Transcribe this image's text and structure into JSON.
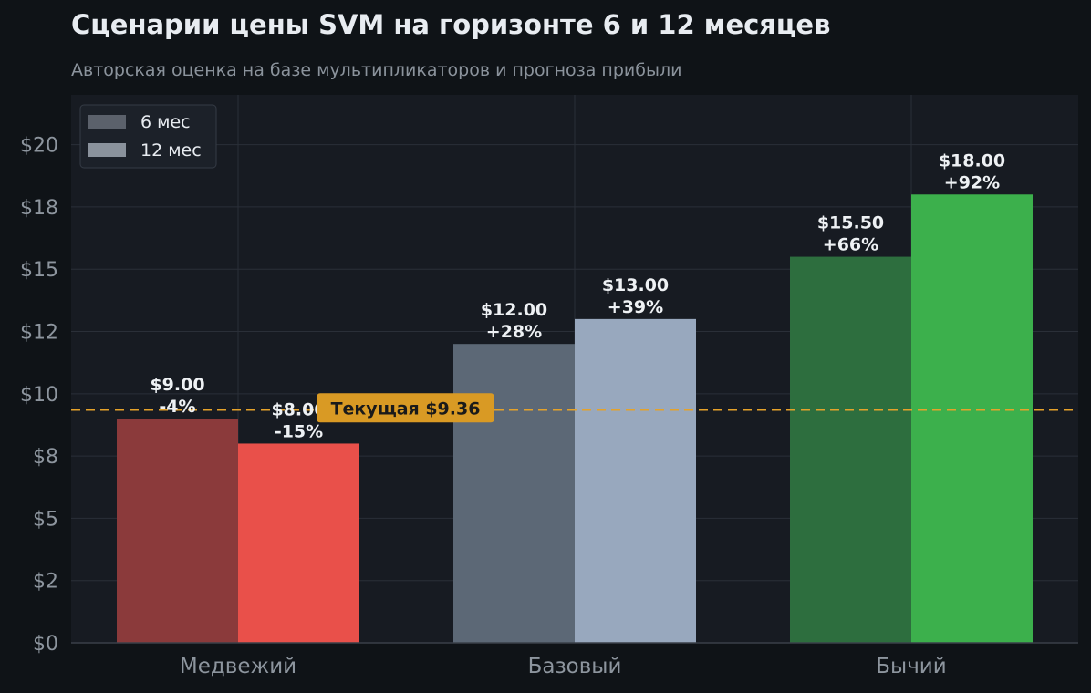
{
  "chart_data": {
    "type": "bar",
    "title": "Сценарии цены SVM на горизонте 6 и 12 месяцев",
    "subtitle": "Авторская оценка на базе мультипликаторов и прогноза прибыли",
    "xlabel": "",
    "ylabel": "",
    "categories": [
      "Медвежий",
      "Базовый",
      "Бычий"
    ],
    "series": [
      {
        "name": "6 мес",
        "values": [
          9.0,
          12.0,
          15.5
        ],
        "value_labels": [
          "$9.00",
          "$12.00",
          "$15.50"
        ],
        "change_labels": [
          "-4%",
          "+28%",
          "+66%"
        ],
        "colors": [
          "#8b3a3b",
          "#5c6876",
          "#2d6e3e"
        ]
      },
      {
        "name": "12 мес",
        "values": [
          8.0,
          13.0,
          18.0
        ],
        "value_labels": [
          "$8.00",
          "$13.00",
          "$18.00"
        ],
        "change_labels": [
          "-15%",
          "+39%",
          "+92%"
        ],
        "colors": [
          "#e9504a",
          "#98a8be",
          "#3cb04c"
        ]
      }
    ],
    "reference_line": {
      "value": 9.36,
      "label": "Текущая $9.36",
      "color": "#e5a22a"
    },
    "ylim": [
      0,
      22
    ],
    "yticks": [
      0,
      2.5,
      5,
      7.5,
      10,
      12.5,
      15,
      17.5,
      20
    ],
    "ytick_labels": [
      "$0",
      "$2",
      "$5",
      "$8",
      "$10",
      "$12",
      "$15",
      "$18",
      "$20"
    ],
    "grid": true,
    "legend": {
      "position": "top-left",
      "entries": [
        "6 мес",
        "12 мес"
      ],
      "colors": [
        "#5b616b",
        "#8a929c"
      ]
    },
    "colors": {
      "background": "#0f1317",
      "plot_background": "#171b22",
      "grid": "#2a2f38",
      "axis_text": "#8d959e",
      "title": "#e8ecf1",
      "bar_label": "#eef1f4"
    }
  }
}
